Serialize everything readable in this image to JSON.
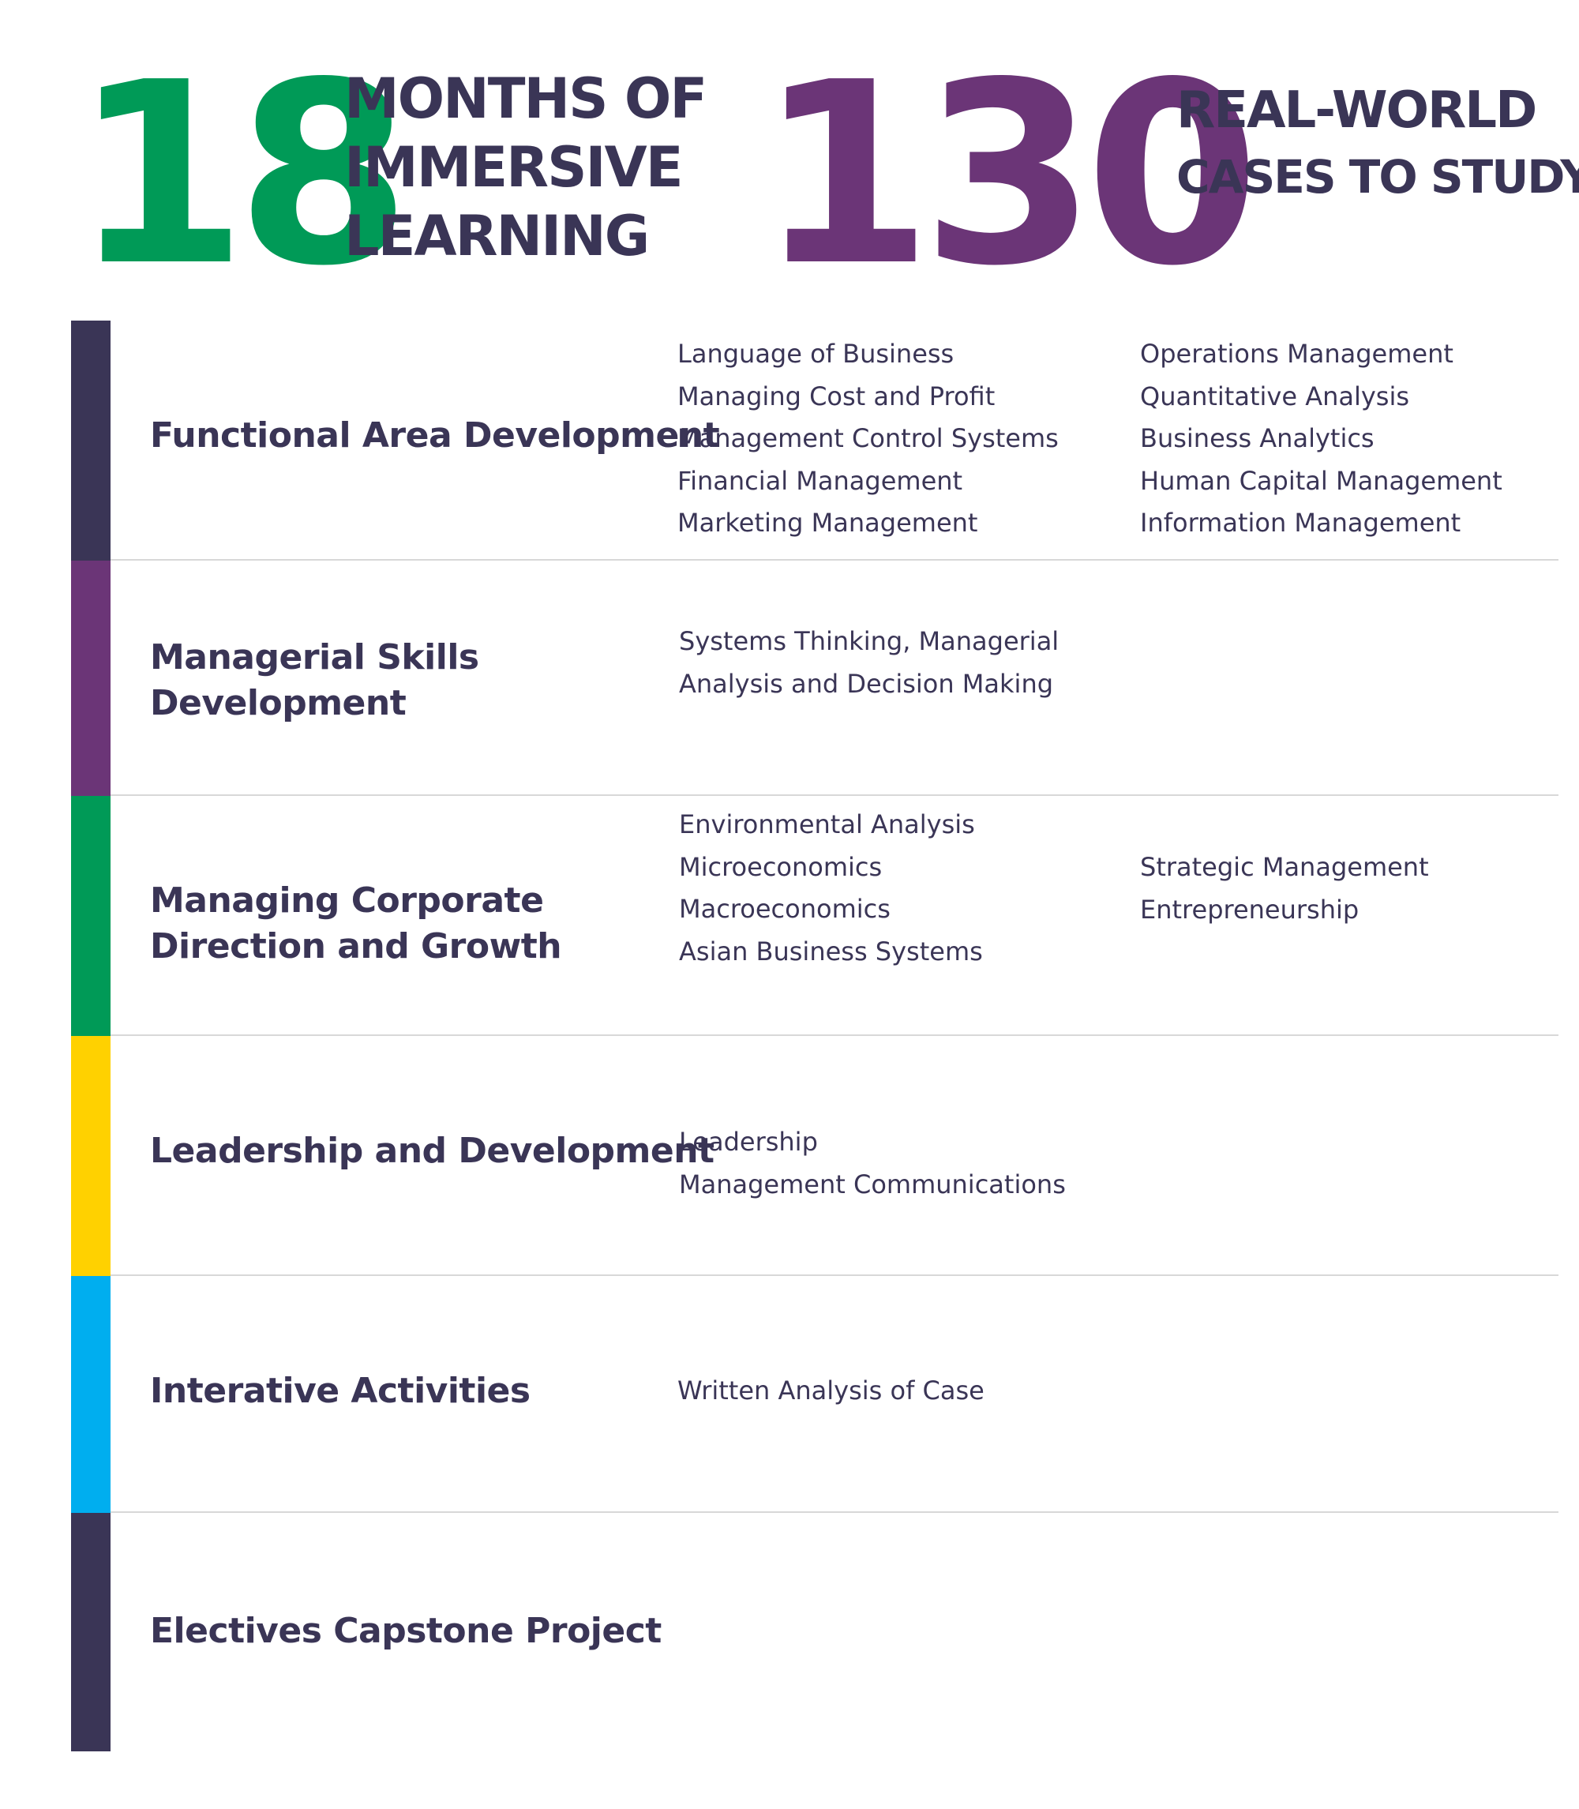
{
  "stats": [
    {
      "number": "18",
      "lines": [
        "MONTHS OF",
        "IMMERSIVE",
        "LEARNING"
      ],
      "color": "#009a57"
    },
    {
      "number": "130",
      "lines": [
        "REAL-WORLD",
        "CASES TO STUDY"
      ],
      "color": "#6b3577"
    }
  ],
  "colors": {
    "text": "#3a3556",
    "navy": "#3a3556",
    "purple": "#6b3577",
    "green": "#009a57",
    "yellow": "#ffd100",
    "blue": "#00aeef",
    "divider": "#d8d8d8"
  },
  "rows": [
    {
      "title_lines": [
        "Functional Area Development"
      ],
      "bar_color": "#3a3556",
      "col1": [
        "Language of Business",
        "Managing Cost and Profit",
        "Management Control Systems",
        "Financial Management",
        "Marketing Management"
      ],
      "col2": [
        "Operations Management",
        "Quantitative Analysis",
        "Business Analytics",
        "Human Capital Management",
        "Information Management"
      ]
    },
    {
      "title_lines": [
        "Managerial Skills",
        "Development"
      ],
      "bar_color": "#6b3577",
      "col1": [
        "Systems Thinking, Managerial",
        "Analysis and Decision Making"
      ],
      "col2": []
    },
    {
      "title_lines": [
        "Managing Corporate",
        "Direction and Growth"
      ],
      "bar_color": "#009a57",
      "col1": [
        "Environmental Analysis",
        "Microeconomics",
        "Macroeconomics",
        "Asian Business Systems"
      ],
      "col2": [
        "Strategic Management",
        "Entrepreneurship"
      ]
    },
    {
      "title_lines": [
        "Leadership and Development"
      ],
      "bar_color": "#ffd100",
      "col1": [
        "Leadership",
        "Management Communications"
      ],
      "col2": []
    },
    {
      "title_lines": [
        "Interative Activities"
      ],
      "bar_color": "#00aeef",
      "col1": [
        "Written Analysis of Case"
      ],
      "col2": []
    },
    {
      "title_lines": [
        "Electives Capstone Project"
      ],
      "bar_color": "#3a3556",
      "col1": [],
      "col2": []
    }
  ]
}
